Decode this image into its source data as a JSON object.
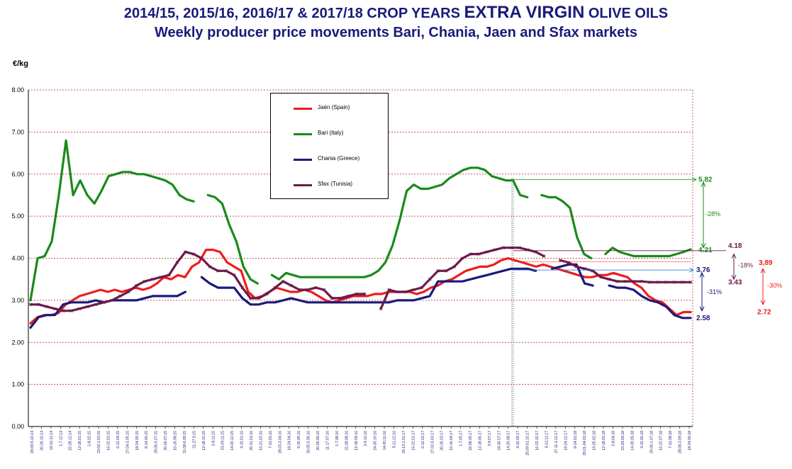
{
  "header": {
    "title_part1": "2014/15,  2015/16, 2016/17  &  2017/18 CROP YEARS ",
    "title_big": "EXTRA VIRGIN",
    "title_part2": " OLIVE OILS",
    "subtitle": "Weekly producer price movements Bari, Chania, Jaen and Sfax markets"
  },
  "chart_data": {
    "type": "line",
    "ylabel": "€/kg",
    "ylim": [
      0,
      8
    ],
    "y_ticks": [
      "0.00",
      "1.00",
      "2.00",
      "3.00",
      "4.00",
      "5.00",
      "6.00",
      "7.00",
      "8.00"
    ],
    "grid": "horizontal dashed red",
    "legend_placement": "top-center",
    "x_tick_labels": [
      "29.09-5.10.14",
      "20-26.10.14",
      "10-16.11.14",
      "1-7.12.14",
      "22-28.12.14",
      "12-18.01.15",
      "2-8.02.15",
      "23.02-1.03.15",
      "16-22.03.15",
      "6-12.04.15",
      "27.04-3.05.15",
      "18-24.05.15",
      "8-14.06.15",
      "29.06-5.07.15",
      "20-26.07.15",
      "10-16.08.15",
      "31.08-6.09.15",
      "21-27.9.15",
      "12-18.10.15",
      "2-8.11.15",
      "23-29.11.15",
      "14-20.12.15",
      "4-10.01.16",
      "25-31.01.16",
      "15-21.02.16",
      "7-13.03.16",
      "28.03-3.04.16",
      "18-24.04.16",
      "9-15.05.16",
      "30.05-5.06.16",
      "20-26.06.16",
      "11-17.07.16",
      "1-7.08.16",
      "22-28.08.16",
      "12-18.09.16",
      "3-9.10.16",
      "24-30.10.16",
      "14-20.11.16",
      "5-11.12.16",
      "26.12-1.01.17",
      "16-22.01.17",
      "6-12.02.17",
      "27.02-5.03.17",
      "20-26.03.17",
      "10-16.04.17",
      "1-7.05.17",
      "22-28.05.17",
      "12-18.06.17",
      "3-9.07.17",
      "24-30.07.17",
      "14-20.08.17",
      "4-10.09.17",
      "25.09-01.10.17",
      "16-22.10.17",
      "6-12.11.17",
      "27.11-3.12.17",
      "18-24.12.17",
      "8-14.01.18",
      "29.01-04.02.18",
      "19-25.02.18",
      "12-18.03.18",
      "2-8.04.18",
      "23-29.04.18",
      "14-20.05.18",
      "4-10.06.18",
      "25.06-1.07.18",
      "16-22.07.18",
      "7-13.08.18",
      "28.08-3.09.18",
      "18-24.09.18"
    ],
    "series": [
      {
        "name": "Jaén (Spain)",
        "color": "#ee1c1c",
        "values": [
          2.45,
          2.6,
          2.65,
          2.65,
          2.7,
          2.9,
          3.0,
          3.1,
          3.15,
          3.2,
          3.25,
          3.2,
          3.25,
          3.2,
          3.25,
          3.3,
          3.25,
          3.3,
          3.4,
          3.55,
          3.5,
          3.6,
          3.55,
          3.8,
          3.9,
          4.2,
          4.2,
          4.15,
          3.9,
          3.8,
          3.7,
          3.2,
          3.05,
          3.1,
          3.2,
          3.3,
          3.25,
          3.2,
          3.2,
          3.25,
          3.2,
          3.1,
          3.0,
          2.95,
          3.0,
          3.05,
          3.1,
          3.1,
          3.1,
          3.15,
          3.15,
          3.2,
          3.2,
          3.2,
          3.2,
          3.15,
          3.2,
          3.3,
          3.35,
          3.45,
          3.5,
          3.6,
          3.7,
          3.75,
          3.8,
          3.8,
          3.85,
          3.95,
          4.0,
          3.95,
          3.9,
          3.85,
          3.8,
          3.85,
          3.8,
          3.75,
          3.7,
          3.65,
          3.6,
          3.55,
          3.55,
          3.6,
          3.6,
          3.65,
          3.6,
          3.55,
          3.4,
          3.3,
          3.1,
          3.0,
          2.95,
          2.8,
          2.65,
          2.72,
          2.72
        ]
      },
      {
        "name": "Bari (Italy)",
        "color": "#1a8a1a",
        "values": [
          3.0,
          4.0,
          4.05,
          4.4,
          5.5,
          6.8,
          5.5,
          5.85,
          5.5,
          5.3,
          5.6,
          5.95,
          6.0,
          6.05,
          6.05,
          6.0,
          6.0,
          5.95,
          5.9,
          5.85,
          5.75,
          5.5,
          5.4,
          5.35,
          null,
          5.5,
          5.45,
          5.3,
          4.8,
          4.4,
          3.8,
          3.5,
          3.4,
          null,
          3.6,
          3.5,
          3.65,
          3.6,
          3.55,
          3.55,
          3.55,
          3.55,
          3.55,
          3.55,
          3.55,
          3.55,
          3.55,
          3.55,
          3.6,
          3.7,
          3.9,
          4.3,
          4.9,
          5.6,
          5.75,
          5.65,
          5.65,
          5.7,
          5.75,
          5.9,
          6.0,
          6.1,
          6.15,
          6.15,
          6.1,
          5.95,
          5.9,
          5.85,
          5.85,
          5.5,
          5.45,
          null,
          5.5,
          5.45,
          5.45,
          5.35,
          5.2,
          4.5,
          4.1,
          4.0,
          null,
          4.1,
          4.25,
          4.15,
          4.1,
          4.05,
          4.05,
          4.05,
          4.05,
          4.05,
          4.05,
          4.1,
          4.15,
          4.21
        ]
      },
      {
        "name": "Chania (Greece)",
        "color": "#1a1a7a",
        "values": [
          2.35,
          2.6,
          2.65,
          2.65,
          2.9,
          2.95,
          2.95,
          2.95,
          3.0,
          2.95,
          3.0,
          3.0,
          3.0,
          3.0,
          3.05,
          3.1,
          3.1,
          3.1,
          3.1,
          3.2,
          null,
          3.55,
          3.4,
          3.3,
          3.3,
          3.3,
          3.05,
          2.9,
          2.9,
          2.95,
          2.95,
          3.0,
          3.05,
          3.0,
          2.95,
          2.95,
          2.95,
          2.95,
          2.95,
          2.95,
          2.95,
          2.95,
          2.95,
          2.95,
          2.95,
          3.0,
          3.0,
          3.0,
          3.05,
          3.1,
          3.45,
          3.45,
          3.45,
          3.45,
          3.5,
          3.55,
          3.6,
          3.65,
          3.7,
          3.75,
          3.75,
          3.75,
          3.7,
          null,
          3.75,
          3.8,
          3.85,
          3.85,
          3.4,
          3.35,
          null,
          3.35,
          3.3,
          3.3,
          3.25,
          3.1,
          3.0,
          2.95,
          2.85,
          2.65,
          2.58,
          2.58
        ]
      },
      {
        "name": "Sfax (Tunisia)",
        "color": "#6b1a4a",
        "values": [
          2.9,
          2.9,
          2.85,
          2.8,
          2.75,
          2.75,
          2.8,
          2.85,
          2.9,
          2.95,
          3.0,
          3.1,
          3.2,
          3.35,
          3.45,
          3.5,
          3.55,
          3.6,
          3.9,
          4.15,
          4.1,
          4.0,
          3.8,
          3.7,
          3.7,
          3.6,
          3.3,
          3.05,
          3.05,
          3.15,
          3.3,
          3.45,
          3.35,
          3.25,
          3.25,
          3.3,
          3.25,
          3.05,
          3.05,
          3.1,
          3.15,
          3.15,
          null,
          2.8,
          3.25,
          3.2,
          3.2,
          3.25,
          3.3,
          3.5,
          3.7,
          3.7,
          3.8,
          4.0,
          4.1,
          4.1,
          4.15,
          4.2,
          4.25,
          4.25,
          4.25,
          4.2,
          4.15,
          4.05,
          null,
          3.95,
          3.9,
          3.8,
          3.75,
          3.7,
          3.55,
          3.5,
          3.45,
          3.45,
          3.45,
          3.45,
          3.43,
          3.43,
          3.43,
          3.43,
          3.43,
          3.43
        ]
      }
    ],
    "annotations": {
      "bari_start": "5,82",
      "bari_end": "4.21",
      "bari_change": "-28%",
      "chania_start": "3,76",
      "chania_end": "2.58",
      "chania_change": "-31%",
      "sfax_start": "4.18",
      "sfax_end": "3.43",
      "sfax_change": "-18%",
      "jaen_start": "3,89",
      "jaen_end": "2.72",
      "jaen_change": "-30%"
    }
  }
}
